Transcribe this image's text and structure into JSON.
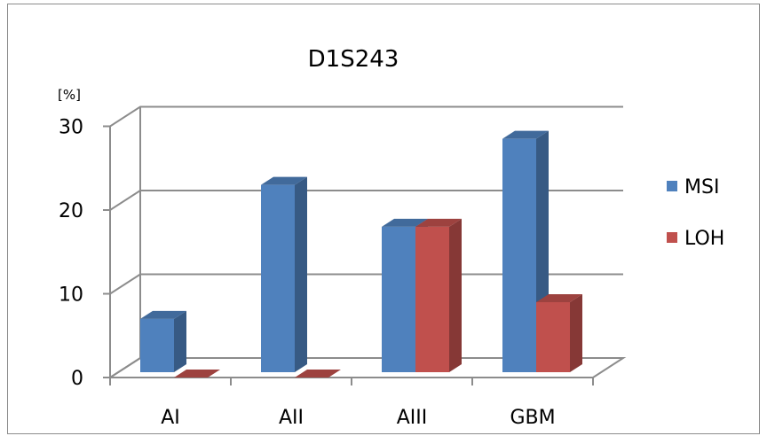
{
  "chart_data": {
    "type": "bar",
    "title": "D1S243",
    "ylabel": "[%]",
    "xlabel": "",
    "categories": [
      "AI",
      "AII",
      "AIII",
      "GBM"
    ],
    "series": [
      {
        "name": "MSI",
        "values": [
          7,
          23,
          18,
          28.5
        ],
        "color": "#4f81bd"
      },
      {
        "name": "LOH",
        "values": [
          0,
          0,
          18,
          9
        ],
        "color": "#c0504d"
      }
    ],
    "ylim": [
      0,
      30
    ],
    "yticks": [
      "0",
      "10",
      "20",
      "30"
    ],
    "grid": true,
    "legend_position": "right",
    "style": "3d-clustered-column"
  }
}
